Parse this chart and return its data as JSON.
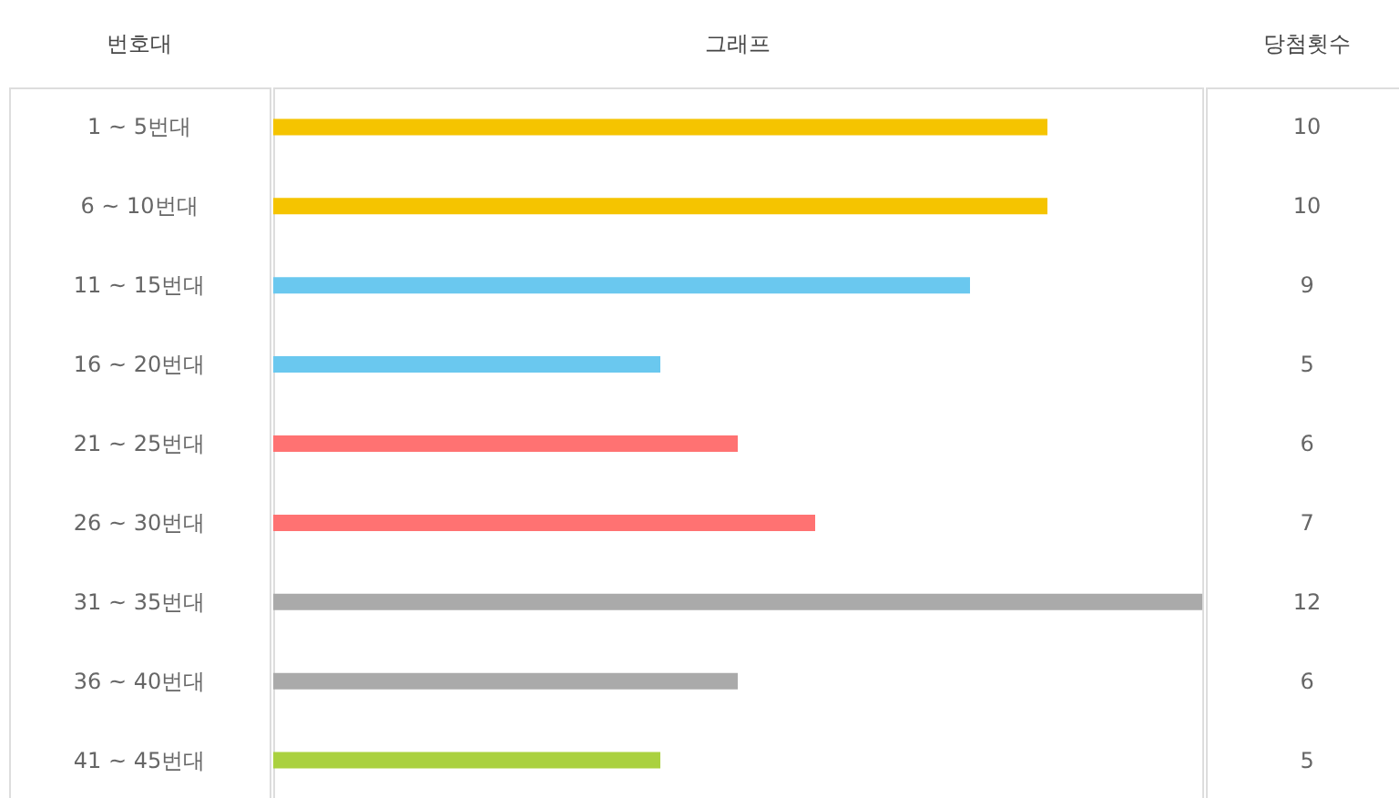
{
  "chart_data": {
    "type": "bar",
    "orientation": "horizontal",
    "ylabel": "번호대",
    "xlabel": "그래프",
    "y2label": "당첨횟수",
    "categories": [
      "1 ~ 5번대",
      "6 ~ 10번대",
      "11 ~ 15번대",
      "16 ~ 20번대",
      "21 ~ 25번대",
      "26 ~ 30번대",
      "31 ~ 35번대",
      "36 ~ 40번대",
      "41 ~ 45번대"
    ],
    "values": [
      10,
      10,
      9,
      5,
      6,
      7,
      12,
      6,
      5
    ],
    "colors": [
      "#f5c400",
      "#f5c400",
      "#6ac8ef",
      "#6ac8ef",
      "#ff7272",
      "#ff7272",
      "#aaaaaa",
      "#aaaaaa",
      "#aad13f"
    ],
    "data_labels": true
  }
}
